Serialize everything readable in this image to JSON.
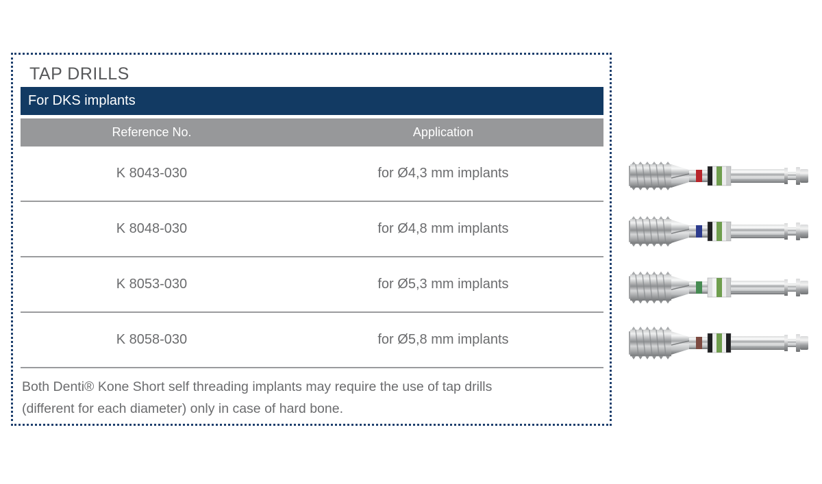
{
  "panel": {
    "title": "TAP DRILLS",
    "band_title": "For DKS implants",
    "columns": [
      "Reference No.",
      "Application"
    ],
    "rows": [
      {
        "reference": "K 8043-030",
        "application": "for Ø4,3 mm implants"
      },
      {
        "reference": "K 8048-030",
        "application": "for Ø4,8 mm implants"
      },
      {
        "reference": "K 8053-030",
        "application": "for Ø5,3 mm implants"
      },
      {
        "reference": "K 8058-030",
        "application": "for Ø5,8 mm implants"
      }
    ],
    "note_lines": [
      "Both Denti® Kone Short self threading implants may require the use of tap drills",
      "(different for each diameter) only in case of hard bone."
    ]
  },
  "colors": {
    "dotted_border_navy": "#1d3f6d",
    "band_navy": "#123a63",
    "header_gray": "#97989a",
    "text_gray": "#6b6c6e",
    "title_gray": "#57585a",
    "separator_gray": "#9a9b9d"
  },
  "drills": [
    {
      "name": "tap-drill-4-3-mm",
      "diameter_band_color": "#b8252b",
      "collar_colors": [
        "#1e1f21",
        "#eaebeb",
        "#6f9e4e",
        "#ededee",
        "#c9cacb"
      ],
      "head_scale": 1
    },
    {
      "name": "tap-drill-4-8-mm",
      "diameter_band_color": "#2c3b8d",
      "collar_colors": [
        "#1e1f21",
        "#eaebeb",
        "#6f9e4e",
        "#ededee",
        "#c9cacb"
      ],
      "head_scale": 1.06
    },
    {
      "name": "tap-drill-5-3-mm",
      "diameter_band_color": "#468b52",
      "collar_colors": [
        "#dedfe0",
        "#f3f4f4",
        "#6f9e4e",
        "#ededee",
        "#c9cacb"
      ],
      "head_scale": 1.12
    },
    {
      "name": "tap-drill-5-8-mm",
      "diameter_band_color": "#7d4a41",
      "collar_colors": [
        "#1e1f21",
        "#eaebeb",
        "#6f9e4e",
        "#ededee",
        "#1e1f21"
      ],
      "head_scale": 1.14
    }
  ]
}
